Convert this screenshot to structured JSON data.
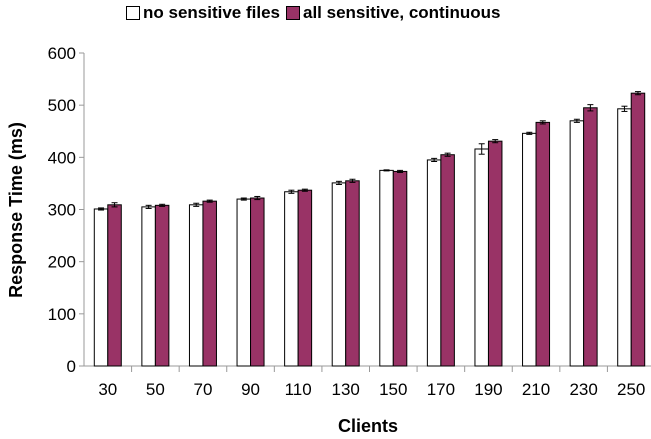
{
  "chart_data": {
    "type": "bar",
    "title": "",
    "xlabel": "Clients",
    "ylabel": "Response Time (ms)",
    "ylim": [
      0,
      600
    ],
    "yticks": [
      0,
      100,
      200,
      300,
      400,
      500,
      600
    ],
    "categories": [
      "30",
      "50",
      "70",
      "90",
      "110",
      "130",
      "150",
      "170",
      "190",
      "210",
      "230",
      "250"
    ],
    "legend_position": "top",
    "grid": false,
    "series": [
      {
        "name": "no sensitive files",
        "color": "#ffffff",
        "values": [
          301,
          305,
          309,
          320,
          334,
          351,
          375,
          395,
          416,
          446,
          470,
          493
        ],
        "errors": [
          2,
          3,
          3,
          2,
          3,
          3,
          1,
          3,
          10,
          2,
          3,
          5
        ]
      },
      {
        "name": "all sensitive, continuous",
        "color": "#993366",
        "values": [
          309,
          308,
          316,
          322,
          337,
          355,
          373,
          405,
          431,
          467,
          495,
          523
        ],
        "errors": [
          4,
          2,
          2,
          3,
          2,
          3,
          2,
          3,
          3,
          3,
          6,
          3
        ]
      }
    ]
  }
}
